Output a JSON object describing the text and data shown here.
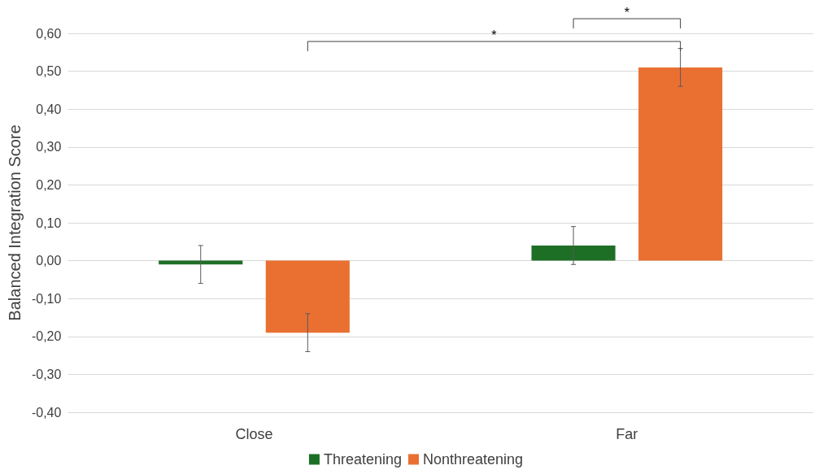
{
  "chart_data": {
    "type": "bar",
    "ylabel": "Balanced Integration Score",
    "categories": [
      "Close",
      "Far"
    ],
    "series": [
      {
        "name": "Threatening",
        "color": "#1e6f26",
        "values": [
          -0.01,
          0.04
        ],
        "errors": [
          0.05,
          0.05
        ]
      },
      {
        "name": "Nonthreatening",
        "color": "#ea7032",
        "values": [
          -0.19,
          0.51
        ],
        "errors": [
          0.05,
          0.05
        ]
      }
    ],
    "ylim": [
      -0.4,
      0.6
    ],
    "yticks": [
      {
        "value": -0.4,
        "label": "-0,40"
      },
      {
        "value": -0.3,
        "label": "-0,30"
      },
      {
        "value": -0.2,
        "label": "-0,20"
      },
      {
        "value": -0.1,
        "label": "-0,10"
      },
      {
        "value": 0,
        "label": "0,00"
      },
      {
        "value": 0.1,
        "label": "0,10"
      },
      {
        "value": 0.2,
        "label": "0,20"
      },
      {
        "value": 0.3,
        "label": "0,30"
      },
      {
        "value": 0.4,
        "label": "0,40"
      },
      {
        "value": 0.5,
        "label": "0,50"
      },
      {
        "value": 0.6,
        "label": "0,60"
      }
    ],
    "grid": "y",
    "legend": "bottom",
    "annotations": [
      "*",
      "*"
    ]
  }
}
